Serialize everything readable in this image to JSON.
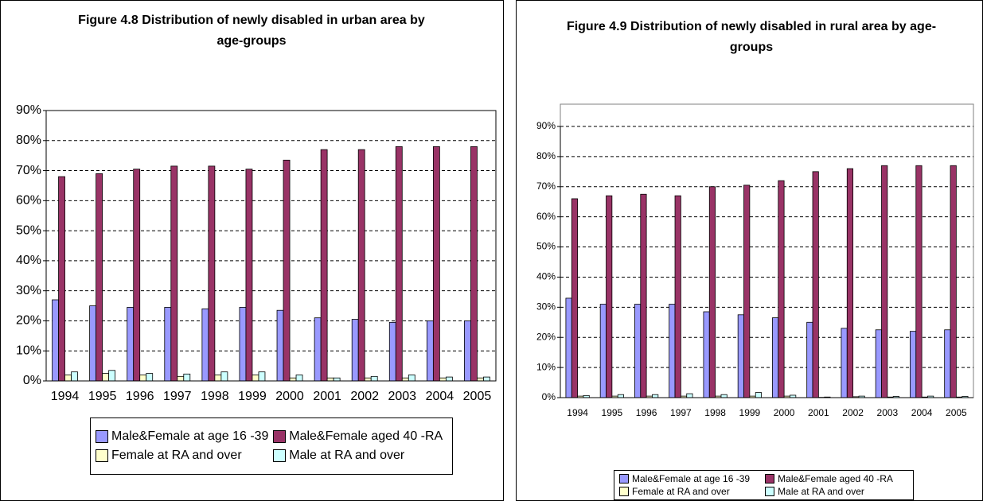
{
  "chart_data": [
    {
      "type": "bar",
      "title": "Figure 4.8 Distribution of newly disabled in urban area by age-groups",
      "categories": [
        "1994",
        "1995",
        "1996",
        "1997",
        "1998",
        "1999",
        "2000",
        "2001",
        "2002",
        "2003",
        "2004",
        "2005"
      ],
      "series": [
        {
          "name": "Male&Female at age 16 -39",
          "color": "#9999ff",
          "values": [
            27,
            25,
            24.5,
            24.5,
            24,
            24.5,
            23.5,
            21,
            20.5,
            19.5,
            20,
            20
          ]
        },
        {
          "name": "Male&Female aged 40 -RA",
          "color": "#993366",
          "values": [
            68,
            69,
            70.5,
            71.5,
            71.5,
            70.5,
            73.5,
            77,
            77,
            78,
            78,
            78
          ]
        },
        {
          "name": "Female at RA and over",
          "color": "#ffffcc",
          "values": [
            2,
            2.5,
            2,
            1.5,
            2,
            2,
            1,
            1,
            1,
            1,
            1,
            1
          ]
        },
        {
          "name": "Male at RA and over",
          "color": "#ccffff",
          "values": [
            3,
            3.5,
            2.5,
            2.3,
            3,
            3,
            2,
            1,
            1.5,
            2,
            1.3,
            1.3
          ]
        }
      ],
      "ylim": [
        0,
        90
      ],
      "yticks": [
        {
          "value": 0,
          "label": "0%"
        },
        {
          "value": 10,
          "label": "10%"
        },
        {
          "value": 20,
          "label": "20%"
        },
        {
          "value": 30,
          "label": "30%"
        },
        {
          "value": 40,
          "label": "40%"
        },
        {
          "value": 50,
          "label": "50%"
        },
        {
          "value": 60,
          "label": "60%"
        },
        {
          "value": 70,
          "label": "70%"
        },
        {
          "value": 80,
          "label": "80%"
        },
        {
          "value": 90,
          "label": "90%"
        }
      ],
      "grid": true,
      "legend": "bottom"
    },
    {
      "type": "bar",
      "title": "Figure 4.9 Distribution of newly disabled in rural area by age-groups",
      "categories": [
        "1994",
        "1995",
        "1996",
        "1997",
        "1998",
        "1999",
        "2000",
        "2001",
        "2002",
        "2003",
        "2004",
        "2005"
      ],
      "series": [
        {
          "name": "Male&Female at age 16 -39",
          "color": "#9999ff",
          "values": [
            33,
            31,
            31,
            31,
            28.5,
            27.5,
            26.5,
            25,
            23,
            22.5,
            22,
            22.5
          ]
        },
        {
          "name": "Male&Female aged 40 -RA",
          "color": "#993366",
          "values": [
            66,
            67,
            67.5,
            67,
            70,
            70.5,
            72,
            75,
            76,
            77,
            77,
            77
          ]
        },
        {
          "name": "Female at RA and over",
          "color": "#ffffcc",
          "values": [
            0.5,
            0.5,
            0.5,
            0.5,
            0.5,
            0.5,
            0.5,
            0.1,
            0.3,
            0.2,
            0.2,
            0.2
          ]
        },
        {
          "name": "Male at RA and over",
          "color": "#ccffff",
          "values": [
            0.7,
            1,
            1,
            1.3,
            1,
            1.7,
            0.8,
            0.2,
            0.5,
            0.4,
            0.5,
            0.4
          ]
        }
      ],
      "ylim": [
        0,
        90
      ],
      "yticks": [
        {
          "value": 0,
          "label": "0%"
        },
        {
          "value": 10,
          "label": "10%"
        },
        {
          "value": 20,
          "label": "20%"
        },
        {
          "value": 30,
          "label": "30%"
        },
        {
          "value": 40,
          "label": "40%"
        },
        {
          "value": 50,
          "label": "50%"
        },
        {
          "value": 60,
          "label": "60%"
        },
        {
          "value": 70,
          "label": "70%"
        },
        {
          "value": 80,
          "label": "80%"
        },
        {
          "value": 90,
          "label": "90%"
        }
      ],
      "grid": true,
      "legend": "bottom"
    }
  ]
}
